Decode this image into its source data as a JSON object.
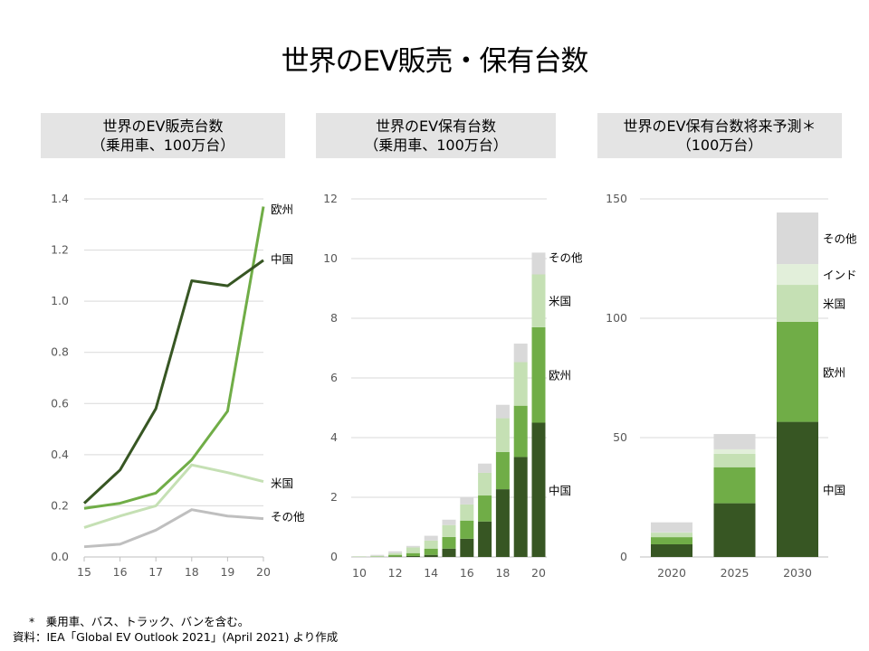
{
  "title": "世界のEV販売・保有台数",
  "panels": [
    {
      "title_line1": "世界のEV販売台数",
      "title_line2": "（乗用車、100万台）"
    },
    {
      "title_line1": "世界のEV保有台数",
      "title_line2": "（乗用車、100万台）"
    },
    {
      "title_line1": "世界のEV保有台数将来予測＊",
      "title_line2": "（100万台）"
    }
  ],
  "notes": {
    "footnote": "*　乗用車、バス、トラック、バンを含む。",
    "source": "資料：IEA「Global EV Outlook 2021」(April 2021) より作成"
  },
  "chart_data": [
    {
      "type": "line",
      "x": [
        "15",
        "16",
        "17",
        "18",
        "19",
        "20"
      ],
      "ylim": [
        0,
        1.4
      ],
      "yticks": [
        "0.0",
        "0.2",
        "0.4",
        "0.6",
        "0.8",
        "1.0",
        "1.2",
        "1.4"
      ],
      "grid": true,
      "legend": "end-labels",
      "series": [
        {
          "name": "その他",
          "color": "#bfbfbf",
          "values": [
            0.04,
            0.05,
            0.105,
            0.185,
            0.16,
            0.15
          ]
        },
        {
          "name": "米国",
          "color": "#c5e0b4",
          "values": [
            0.115,
            0.16,
            0.2,
            0.36,
            0.33,
            0.295
          ]
        },
        {
          "name": "欧州",
          "color": "#70ad47",
          "values": [
            0.19,
            0.21,
            0.25,
            0.38,
            0.57,
            1.37
          ]
        },
        {
          "name": "中国",
          "color": "#375623",
          "values": [
            0.21,
            0.34,
            0.58,
            1.08,
            1.06,
            1.16
          ]
        }
      ]
    },
    {
      "type": "bar",
      "stacked": true,
      "categories": [
        "10",
        "11",
        "12",
        "13",
        "14",
        "15",
        "16",
        "17",
        "18",
        "19",
        "20"
      ],
      "xticks": [
        "10",
        "12",
        "14",
        "16",
        "18",
        "20"
      ],
      "ylim": [
        0,
        12
      ],
      "yticks": [
        "0",
        "2",
        "4",
        "6",
        "8",
        "10",
        "12"
      ],
      "grid": true,
      "legend": "end-labels",
      "series": [
        {
          "name": "中国",
          "color": "#375623",
          "values": [
            0,
            0,
            0.01,
            0.03,
            0.07,
            0.28,
            0.61,
            1.19,
            2.27,
            3.35,
            4.5
          ]
        },
        {
          "name": "欧州",
          "color": "#70ad47",
          "values": [
            0,
            0.01,
            0.06,
            0.1,
            0.21,
            0.39,
            0.61,
            0.87,
            1.25,
            1.72,
            3.2
          ]
        },
        {
          "name": "米国",
          "color": "#c5e0b4",
          "values": [
            0.02,
            0.03,
            0.06,
            0.19,
            0.27,
            0.4,
            0.54,
            0.76,
            1.13,
            1.46,
            1.77
          ]
        },
        {
          "name": "その他",
          "color": "#d9d9d9",
          "values": [
            0.01,
            0.03,
            0.06,
            0.05,
            0.16,
            0.18,
            0.23,
            0.31,
            0.45,
            0.62,
            0.73
          ]
        }
      ]
    },
    {
      "type": "bar",
      "stacked": true,
      "categories": [
        "2020",
        "2025",
        "2030"
      ],
      "ylim": [
        0,
        150
      ],
      "yticks": [
        "0",
        "50",
        "100",
        "150"
      ],
      "grid": true,
      "legend": "end-labels",
      "series": [
        {
          "name": "中国",
          "color": "#375623",
          "values": [
            5.3,
            22.5,
            56.6
          ]
        },
        {
          "name": "欧州",
          "color": "#70ad47",
          "values": [
            3.0,
            15.1,
            41.9
          ]
        },
        {
          "name": "米国",
          "color": "#c5e0b4",
          "values": [
            1.9,
            5.6,
            15.5
          ]
        },
        {
          "name": "インド",
          "color": "#e2efda",
          "values": [
            0.1,
            1.9,
            8.7
          ]
        },
        {
          "name": "その他",
          "color": "#d9d9d9",
          "values": [
            4.2,
            6.4,
            21.6
          ]
        }
      ]
    }
  ]
}
